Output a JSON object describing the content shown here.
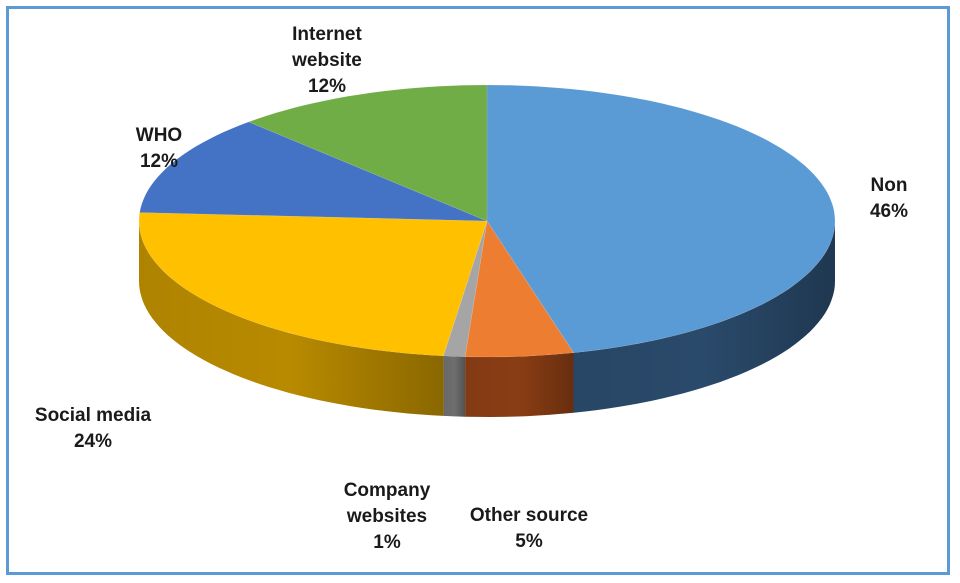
{
  "chart_data": {
    "type": "pie",
    "style": "3d",
    "slices": [
      {
        "label_lines": [
          "Non"
        ],
        "pct_text": "46%",
        "value": 46,
        "color": "#5b9bd5",
        "side": "#2a4a6b"
      },
      {
        "label_lines": [
          "Other source"
        ],
        "pct_text": "5%",
        "value": 5,
        "color": "#ed7d31",
        "side": "#8a3d14"
      },
      {
        "label_lines": [
          "Company",
          "websites"
        ],
        "pct_text": "1%",
        "value": 1,
        "color": "#a5a5a5",
        "side": "#6e6e6e"
      },
      {
        "label_lines": [
          "Social media"
        ],
        "pct_text": "24%",
        "value": 24,
        "color": "#ffc000",
        "side": "#b88a00"
      },
      {
        "label_lines": [
          "WHO"
        ],
        "pct_text": "12%",
        "value": 12,
        "color": "#4472c4",
        "side": "#2b4a80"
      },
      {
        "label_lines": [
          "Internet",
          "website"
        ],
        "pct_text": "12%",
        "value": 12,
        "color": "#70ad47",
        "side": "#3f6a24"
      }
    ]
  }
}
